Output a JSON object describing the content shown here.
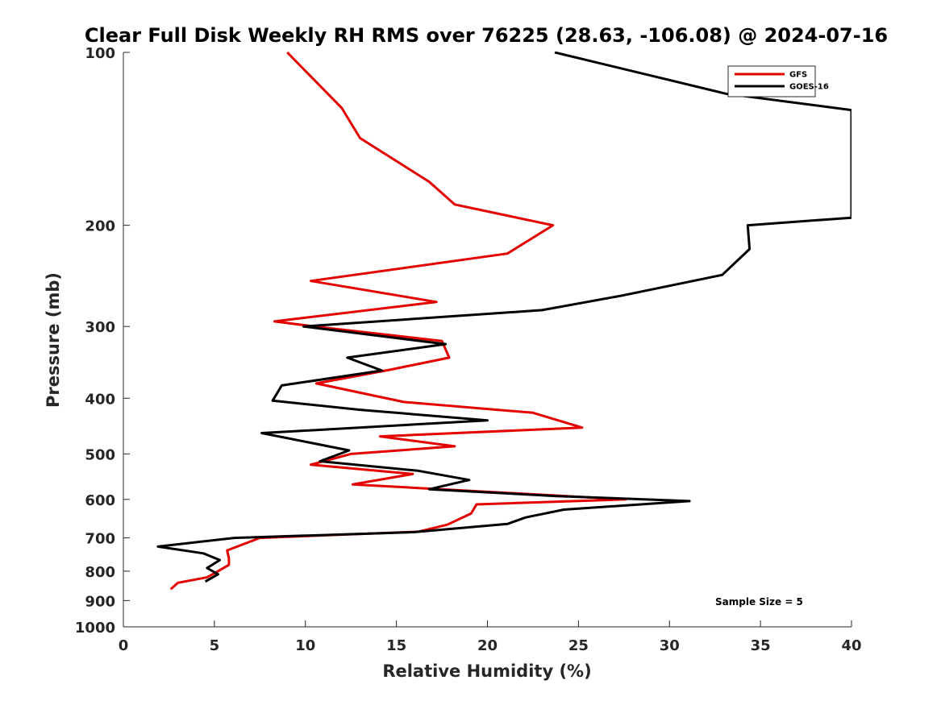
{
  "chart_data": {
    "type": "line",
    "title": "Clear Full Disk Weekly RH RMS over 76225 (28.63, -106.08) @ 2024-07-16",
    "xlabel": "Relative Humidity (%)",
    "ylabel": "Pressure (mb)",
    "xlim": [
      0,
      40
    ],
    "ylim": [
      1000,
      100
    ],
    "y_scale": "log",
    "y_reversed": true,
    "grid": false,
    "legend_position": "top-right",
    "x_ticks": [
      "0",
      "5",
      "10",
      "15",
      "20",
      "25",
      "30",
      "35",
      "40"
    ],
    "y_ticks": [
      {
        "value": 100,
        "label": "100"
      },
      {
        "value": 200,
        "label": "200"
      },
      {
        "value": 300,
        "label": "300"
      },
      {
        "value": 400,
        "label": "400"
      },
      {
        "value": 500,
        "label": "500"
      },
      {
        "value": 600,
        "label": "600"
      },
      {
        "value": 700,
        "label": "700"
      },
      {
        "value": 800,
        "label": "800"
      },
      {
        "value": 900,
        "label": "900"
      },
      {
        "value": 1000,
        "label": "1000"
      }
    ],
    "annotation": "Sample Size = 5",
    "series": [
      {
        "name": "GFS",
        "color": "#e50000",
        "points": [
          [
            9.0,
            100
          ],
          [
            12.0,
            125
          ],
          [
            13.0,
            141
          ],
          [
            16.8,
            168
          ],
          [
            18.2,
            184
          ],
          [
            23.6,
            200
          ],
          [
            21.1,
            224
          ],
          [
            10.3,
            250
          ],
          [
            17.2,
            272
          ],
          [
            8.3,
            294
          ],
          [
            10.5,
            300
          ],
          [
            17.5,
            318
          ],
          [
            17.9,
            340
          ],
          [
            14.6,
            357
          ],
          [
            10.6,
            377
          ],
          [
            15.4,
            406
          ],
          [
            22.5,
            424
          ],
          [
            25.2,
            450
          ],
          [
            14.1,
            466
          ],
          [
            18.2,
            485
          ],
          [
            12.5,
            500
          ],
          [
            10.3,
            522
          ],
          [
            15.9,
            542
          ],
          [
            12.6,
            565
          ],
          [
            27.6,
            600
          ],
          [
            19.4,
            612
          ],
          [
            19.1,
            635
          ],
          [
            17.8,
            664
          ],
          [
            16.2,
            683
          ],
          [
            7.5,
            700
          ],
          [
            5.7,
            736
          ],
          [
            5.8,
            760
          ],
          [
            5.8,
            780
          ],
          [
            5.2,
            800
          ],
          [
            4.6,
            820
          ],
          [
            3.0,
            838
          ],
          [
            2.6,
            860
          ]
        ]
      },
      {
        "name": "GOES-16",
        "color": "#000000",
        "points": [
          [
            23.7,
            100
          ],
          [
            33.1,
            118
          ],
          [
            40.0,
            126
          ],
          [
            40.0,
            194
          ],
          [
            34.3,
            200
          ],
          [
            34.4,
            220
          ],
          [
            32.9,
            244
          ],
          [
            27.4,
            265
          ],
          [
            23.0,
            281
          ],
          [
            9.9,
            300
          ],
          [
            17.7,
            322
          ],
          [
            12.3,
            340
          ],
          [
            14.2,
            358
          ],
          [
            8.7,
            380
          ],
          [
            8.2,
            404
          ],
          [
            13.0,
            419
          ],
          [
            20.0,
            437
          ],
          [
            7.6,
            460
          ],
          [
            12.4,
            493
          ],
          [
            10.8,
            515
          ],
          [
            16.2,
            535
          ],
          [
            19.0,
            555
          ],
          [
            16.8,
            576
          ],
          [
            23.8,
            592
          ],
          [
            31.1,
            604
          ],
          [
            24.2,
            625
          ],
          [
            22.1,
            645
          ],
          [
            21.1,
            662
          ],
          [
            16.0,
            684
          ],
          [
            6.1,
            700
          ],
          [
            1.9,
            725
          ],
          [
            4.4,
            745
          ],
          [
            5.3,
            765
          ],
          [
            4.6,
            790
          ],
          [
            5.2,
            810
          ],
          [
            4.5,
            834
          ]
        ]
      }
    ]
  }
}
